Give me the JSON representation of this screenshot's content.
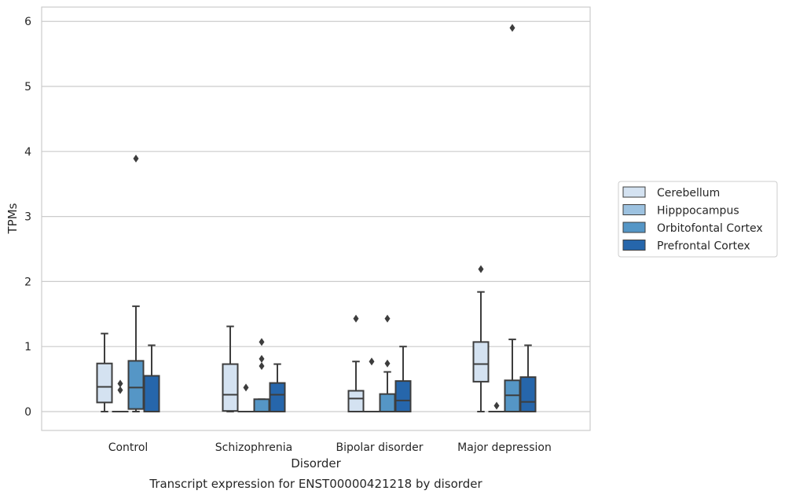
{
  "chart_data": {
    "type": "boxplot",
    "title": "Transcript expression for ENST00000421218 by disorder",
    "xlabel": "Disorder",
    "ylabel": "TPMs",
    "ylim": [
      -0.29,
      6.22
    ],
    "yticks": [
      0,
      1,
      2,
      3,
      4,
      5,
      6
    ],
    "grid": "horizontal",
    "legend_position": "right",
    "categories": [
      "Control",
      "Schizophrenia",
      "Bipolar disorder",
      "Major depression"
    ],
    "series": [
      {
        "name": "Cerebellum",
        "color": "#d4e2f1",
        "boxes": [
          {
            "whisker_low": 0.0,
            "q1": 0.14,
            "median": 0.38,
            "q3": 0.74,
            "whisker_high": 1.2,
            "outliers": []
          },
          {
            "whisker_low": 0.0,
            "q1": 0.01,
            "median": 0.26,
            "q3": 0.73,
            "whisker_high": 1.31,
            "outliers": []
          },
          {
            "whisker_low": 0.0,
            "q1": 0.0,
            "median": 0.2,
            "q3": 0.32,
            "whisker_high": 0.77,
            "outliers": [
              1.43
            ]
          },
          {
            "whisker_low": 0.0,
            "q1": 0.46,
            "median": 0.73,
            "q3": 1.07,
            "whisker_high": 1.84,
            "outliers": [
              2.19
            ]
          }
        ]
      },
      {
        "name": "Hipppocampus",
        "color": "#9dc2e0",
        "boxes": [
          {
            "whisker_low": 0.0,
            "q1": 0.0,
            "median": 0.0,
            "q3": 0.0,
            "whisker_high": 0.0,
            "outliers": [
              0.33,
              0.43
            ]
          },
          {
            "whisker_low": 0.0,
            "q1": 0.0,
            "median": 0.0,
            "q3": 0.0,
            "whisker_high": 0.0,
            "outliers": [
              0.37
            ]
          },
          {
            "whisker_low": 0.0,
            "q1": 0.0,
            "median": 0.0,
            "q3": 0.0,
            "whisker_high": 0.0,
            "outliers": [
              0.77
            ]
          },
          {
            "whisker_low": 0.0,
            "q1": 0.0,
            "median": 0.0,
            "q3": 0.0,
            "whisker_high": 0.0,
            "outliers": [
              0.09
            ]
          }
        ]
      },
      {
        "name": "Orbitofontal Cortex",
        "color": "#5596c6",
        "boxes": [
          {
            "whisker_low": 0.0,
            "q1": 0.04,
            "median": 0.37,
            "q3": 0.78,
            "whisker_high": 1.62,
            "outliers": [
              3.89
            ]
          },
          {
            "whisker_low": 0.0,
            "q1": 0.0,
            "median": 0.0,
            "q3": 0.19,
            "whisker_high": 0.19,
            "outliers": [
              0.7,
              0.81,
              1.07
            ]
          },
          {
            "whisker_low": 0.0,
            "q1": 0.0,
            "median": 0.0,
            "q3": 0.27,
            "whisker_high": 0.61,
            "outliers": [
              0.74,
              1.43
            ]
          },
          {
            "whisker_low": 0.0,
            "q1": 0.0,
            "median": 0.25,
            "q3": 0.48,
            "whisker_high": 1.11,
            "outliers": [
              5.9
            ]
          }
        ]
      },
      {
        "name": "Prefrontal Cortex",
        "color": "#2666ab",
        "boxes": [
          {
            "whisker_low": 0.0,
            "q1": 0.0,
            "median": 0.0,
            "q3": 0.55,
            "whisker_high": 1.02,
            "outliers": []
          },
          {
            "whisker_low": 0.0,
            "q1": 0.0,
            "median": 0.26,
            "q3": 0.44,
            "whisker_high": 0.73,
            "outliers": []
          },
          {
            "whisker_low": 0.0,
            "q1": 0.0,
            "median": 0.17,
            "q3": 0.47,
            "whisker_high": 1.0,
            "outliers": []
          },
          {
            "whisker_low": 0.0,
            "q1": 0.0,
            "median": 0.15,
            "q3": 0.53,
            "whisker_high": 1.02,
            "outliers": []
          }
        ]
      }
    ]
  }
}
